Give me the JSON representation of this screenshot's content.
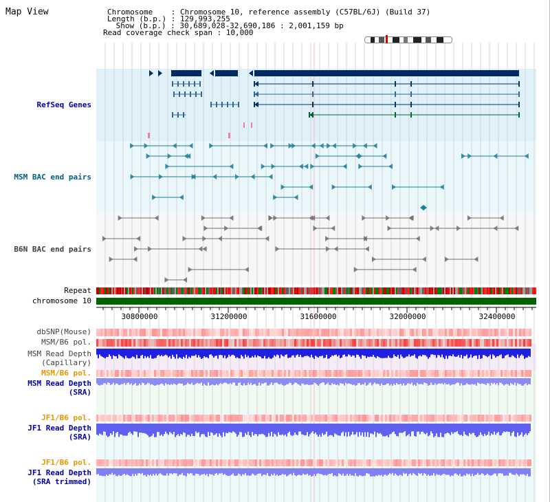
{
  "header": {
    "map_title": "Map View",
    "line_chromosome": "Chromosome    : Chromosome 10, reference assembly (C57BL/6J) (Build 37)",
    "line_length": "Length (b.p.) : 129,993,255",
    "line_show": " Show (b.p.) : 30,689,028-32,690,186 : 2,001,159 bp",
    "line_span": "Read coverage check span : 10,000"
  },
  "tracks": {
    "refseq": "RefSeq Genes",
    "msm_bac": "MSM BAC end pairs",
    "b6n_bac": "B6N BAC end pairs",
    "repeat": "Repeat",
    "chromosome": "chromosome 10",
    "dbsnp": "dbSNP(Mouse)",
    "msm_b6_pol_1": "MSM/B6 pol.",
    "msm_depth_cap_1": "MSM Read Depth",
    "msm_depth_cap_2": "(Capillary)",
    "msm_b6_pol_2": "MSM/B6 pol.",
    "msm_depth_sra_1": "MSM Read Depth",
    "msm_depth_sra_2": "(SRA)",
    "jf1_b6_pol_1": "JF1/B6 pol.",
    "jf1_depth_sra_1": "JF1 Read Depth",
    "jf1_depth_sra_2": "(SRA)",
    "jf1_b6_pol_2": "JF1/B6 pol.",
    "jf1_depth_trim_1": "JF1 Read Depth",
    "jf1_depth_trim_2": "(SRA trimmed)"
  },
  "axis": {
    "ticks": [
      "30800000",
      "31200000",
      "31600000",
      "32000000",
      "32400000"
    ]
  },
  "colors": {
    "refseq_label": "#0000aa",
    "msm_label": "#006080",
    "b6n_label": "#404040",
    "pol_label": "#e69500",
    "depth_label": "#0000aa",
    "refseq_bg": "#dff2fa",
    "msm_bg": "#eaf7fb",
    "b6n_bg": "#f7f7fa",
    "chromosome_bar": "#006400",
    "gene_dark": "#002a60"
  }
}
